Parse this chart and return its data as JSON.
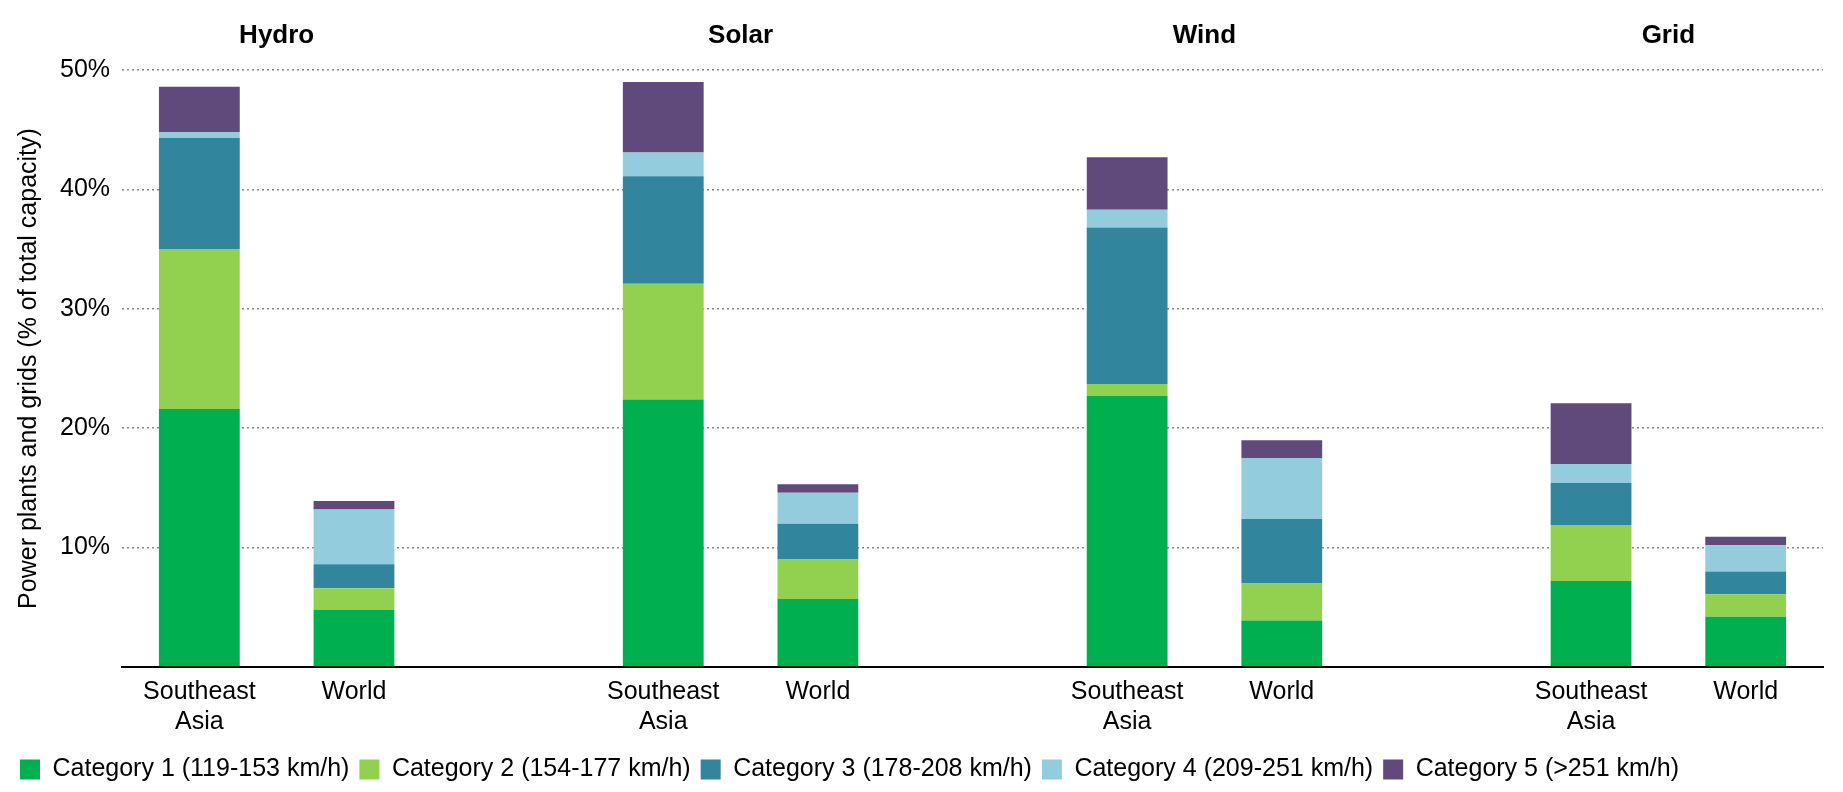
{
  "chart_data": {
    "type": "bar",
    "stacked": true,
    "ylabel": "Power plants and grids (% of total capacity)",
    "categories": [
      "Southeast Asia",
      "World",
      null,
      "Southeast Asia",
      "World",
      null,
      "Southeast Asia",
      "World",
      null,
      "Southeast Asia",
      "World"
    ],
    "annotations": [
      "Hydro",
      "Solar",
      "Wind",
      "Grid"
    ],
    "series": [
      {
        "name": "Category 1 (119-153 km/h)",
        "color": "#00b050",
        "values": [
          21.6,
          4.8,
          null,
          22.4,
          5.7,
          null,
          22.7,
          3.9,
          null,
          7.2,
          4.2
        ]
      },
      {
        "name": "Category 2 (154-177 km/h)",
        "color": "#92d050",
        "values": [
          13.4,
          1.8,
          null,
          9.7,
          3.3,
          null,
          1.0,
          3.1,
          null,
          4.7,
          1.9
        ]
      },
      {
        "name": "Category 3 (178-208 km/h)",
        "color": "#31859c",
        "values": [
          9.3,
          2.0,
          null,
          9.0,
          3.0,
          null,
          13.1,
          5.4,
          null,
          3.5,
          1.9
        ]
      },
      {
        "name": "Category 4 (209-251 km/h)",
        "color": "#93cddd",
        "values": [
          0.5,
          4.6,
          null,
          2.0,
          2.6,
          null,
          1.5,
          5.1,
          null,
          1.6,
          2.2
        ]
      },
      {
        "name": "Category 5 (>251 km/h)",
        "color": "#604a7b",
        "values": [
          3.8,
          0.7,
          null,
          5.9,
          0.7,
          null,
          4.4,
          1.5,
          null,
          5.1,
          0.7
        ]
      }
    ],
    "ylim": [
      0,
      50
    ],
    "yticks": [
      {
        "value": 0,
        "label": null
      },
      {
        "value": 10,
        "label": "10%"
      },
      {
        "value": 20,
        "label": "20%"
      },
      {
        "value": 30,
        "label": "30%"
      },
      {
        "value": 40,
        "label": "40%"
      },
      {
        "value": 50,
        "label": "50%"
      }
    ],
    "grid": "y",
    "legend": "bottom"
  }
}
